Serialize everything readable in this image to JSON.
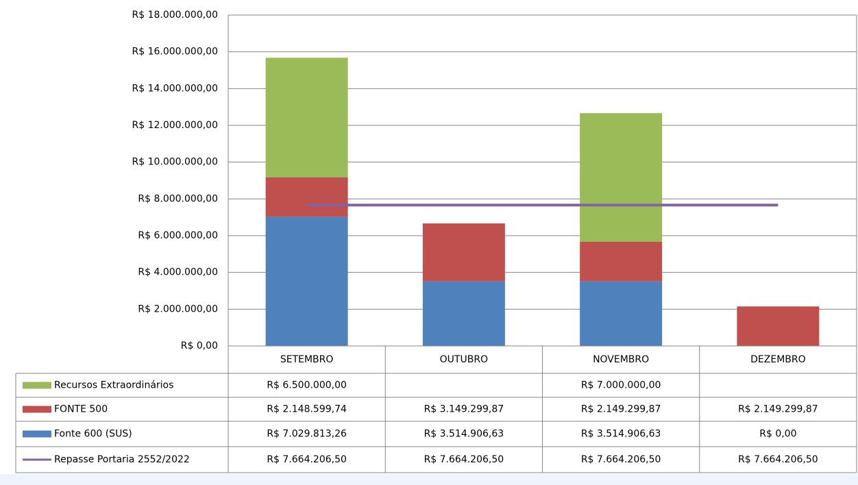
{
  "chart_data": {
    "type": "bar",
    "stacked": true,
    "categories": [
      "SETEMBRO",
      "OUTUBRO",
      "NOVEMBRO",
      "DEZEMBRO"
    ],
    "series": [
      {
        "name": "Recursos Extraordinários",
        "color": "#9bbb59",
        "values": [
          6500000,
          null,
          7000000,
          null
        ],
        "value_labels": [
          "R$ 6.500.000,00",
          null,
          "R$ 7.000.000,00",
          null
        ]
      },
      {
        "name": "FONTE 500",
        "color": "#c0504d",
        "values": [
          2148599.74,
          3149299.87,
          2149299.87,
          2149299.87
        ],
        "value_labels": [
          "R$ 2.148.599,74",
          "R$ 3.149.299,87",
          "R$ 2.149.299,87",
          "R$ 2.149.299,87"
        ]
      },
      {
        "name": "Fonte 600 (SUS)",
        "color": "#4f81bd",
        "values": [
          7029813.26,
          3514906.63,
          3514906.63,
          0
        ],
        "value_labels": [
          "R$ 7.029.813,26",
          "R$ 3.514.906,63",
          "R$ 3.514.906,63",
          "R$ 0,00"
        ]
      },
      {
        "name": "Repasse Portaria 2552/2022",
        "color": "#8064a2",
        "type": "line",
        "values": [
          7664206.5,
          7664206.5,
          7664206.5,
          7664206.5
        ],
        "value_labels": [
          "R$ 7.664.206,50",
          "R$ 7.664.206,50",
          "R$ 7.664.206,50",
          "R$ 7.664.206,50"
        ]
      }
    ],
    "ylim": [
      0,
      18000000
    ],
    "yticks": [
      {
        "value": 0,
        "label": "R$ 0,00"
      },
      {
        "value": 2000000,
        "label": "R$ 2.000.000,00"
      },
      {
        "value": 4000000,
        "label": "R$ 4.000.000,00"
      },
      {
        "value": 6000000,
        "label": "R$ 6.000.000,00"
      },
      {
        "value": 8000000,
        "label": "R$ 8.000.000,00"
      },
      {
        "value": 10000000,
        "label": "R$ 10.000.000,00"
      },
      {
        "value": 12000000,
        "label": "R$ 12.000.000,00"
      },
      {
        "value": 14000000,
        "label": "R$ 14.000.000,00"
      },
      {
        "value": 16000000,
        "label": "R$ 16.000.000,00"
      },
      {
        "value": 18000000,
        "label": "R$ 18.000.000,00"
      }
    ],
    "grid": true
  }
}
